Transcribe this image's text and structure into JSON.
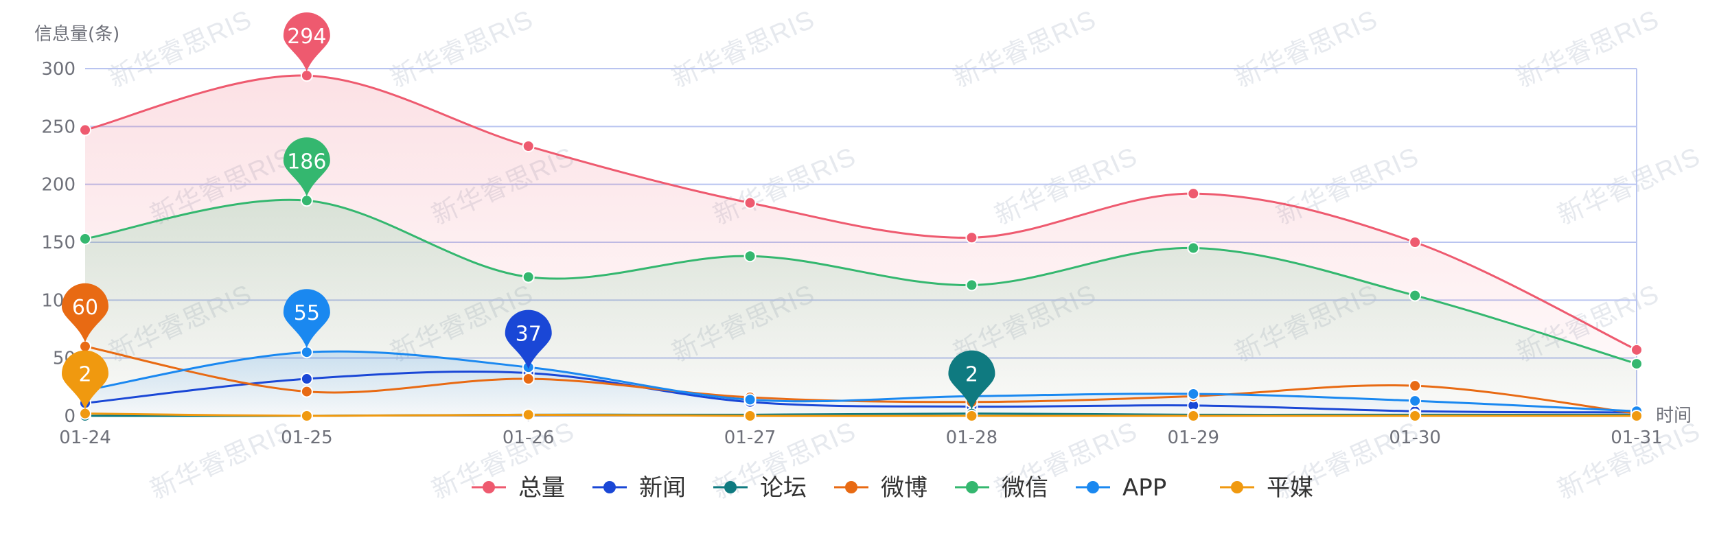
{
  "chart_data": {
    "type": "line",
    "ylabel": "信息量(条)",
    "xlabel": "时间",
    "ylim": [
      0,
      300
    ],
    "y_ticks": [
      0,
      50,
      100,
      150,
      200,
      250,
      300
    ],
    "categories": [
      "01-24",
      "01-25",
      "01-26",
      "01-27",
      "01-28",
      "01-29",
      "01-30",
      "01-31"
    ],
    "grid": true,
    "legend_position": "bottom",
    "series": [
      {
        "name": "总量",
        "color": "#ee5a6f",
        "area": true,
        "values": [
          247,
          294,
          233,
          184,
          154,
          192,
          150,
          57
        ],
        "max_label": "294"
      },
      {
        "name": "新闻",
        "color": "#1a47d6",
        "area": false,
        "values": [
          11,
          32,
          37,
          12,
          8,
          9,
          4,
          3
        ],
        "max_label": "37"
      },
      {
        "name": "论坛",
        "color": "#0f7a80",
        "area": false,
        "values": [
          0,
          0,
          1,
          1,
          2,
          1,
          1,
          1
        ],
        "max_label": "2"
      },
      {
        "name": "微博",
        "color": "#e86a13",
        "area": false,
        "values": [
          60,
          21,
          32,
          16,
          12,
          17,
          26,
          2
        ],
        "max_label": "60"
      },
      {
        "name": "微信",
        "color": "#34b76f",
        "area": true,
        "values": [
          153,
          186,
          120,
          138,
          113,
          145,
          104,
          45
        ],
        "max_label": "186"
      },
      {
        "name": "APP",
        "color": "#1a88f0",
        "area": true,
        "values": [
          22,
          55,
          42,
          14,
          17,
          19,
          13,
          4
        ],
        "max_label": "55"
      },
      {
        "name": "平媒",
        "color": "#f0990f",
        "area": false,
        "values": [
          2,
          0,
          1,
          0,
          0,
          0,
          0,
          0
        ],
        "max_label": "2"
      }
    ],
    "max_marker_index": [
      1,
      2,
      4,
      0,
      1,
      1,
      0
    ]
  },
  "watermark_text": "新华睿思RIS"
}
